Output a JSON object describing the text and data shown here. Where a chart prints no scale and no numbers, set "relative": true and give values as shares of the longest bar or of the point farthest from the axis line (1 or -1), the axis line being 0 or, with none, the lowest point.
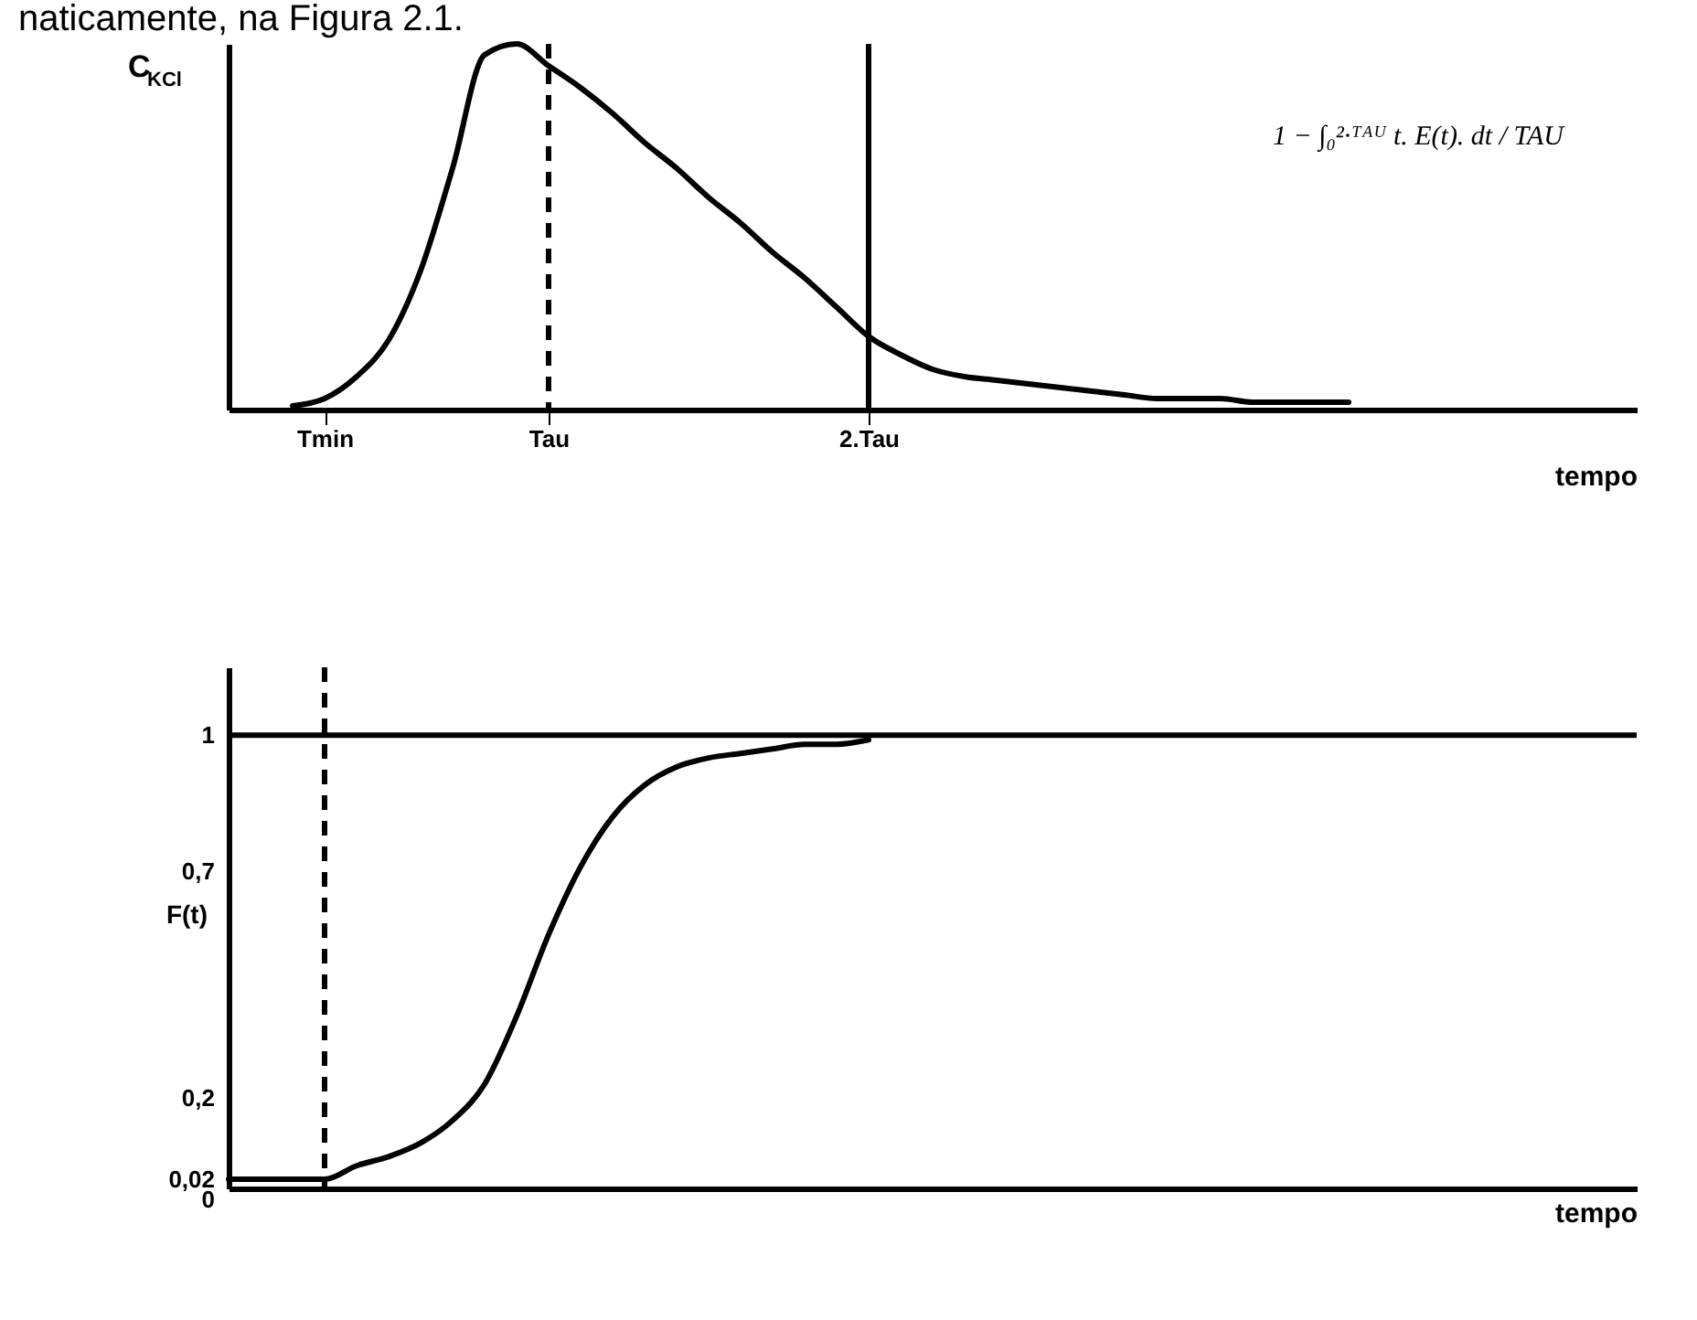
{
  "chart_data": [
    {
      "type": "line",
      "relative": true,
      "ylabel": "C$_{KCl}$",
      "xlabel": "tempo",
      "annotations": [
        "naticamente, na Figura 2.1.",
        "1 − ∫₀²·ᵀᴬᵁ t. E(t). dt / TAU"
      ],
      "categories": [
        null,
        null,
        null,
        "Tmin",
        null,
        null,
        null,
        null,
        null,
        null,
        "Tau",
        null,
        null,
        null,
        null,
        null,
        null,
        null,
        null,
        null,
        "2.Tau",
        null,
        null,
        null,
        null,
        null,
        null,
        null,
        null,
        null,
        null,
        null,
        null,
        null,
        null,
        null,
        null,
        null,
        null,
        null,
        null,
        null,
        null,
        null,
        null
      ],
      "series": [
        {
          "color": "#000000",
          "values": [
            null,
            null,
            0.01,
            0.03,
            0.09,
            0.19,
            0.38,
            0.66,
            0.97,
            1.0,
            0.94,
            0.88,
            0.81,
            0.73,
            0.66,
            0.58,
            0.51,
            0.43,
            0.36,
            0.28,
            0.2,
            0.15,
            0.11,
            0.09,
            0.08,
            0.07,
            0.06,
            0.05,
            0.04,
            0.03,
            0.03,
            0.03,
            0.02,
            0.02,
            0.02,
            0.02,
            null,
            null,
            null,
            null,
            null,
            null,
            null,
            null,
            null
          ]
        }
      ],
      "ref_lines": [
        {
          "axis": "x",
          "value": "Tau",
          "line_style": "dashed"
        },
        {
          "axis": "x",
          "value": "2.Tau",
          "line_style": "solid"
        }
      ]
    },
    {
      "type": "line",
      "ylabel": "F(t)",
      "xlabel": "tempo",
      "tick_labels": "y",
      "ylim": [
        0,
        1.15
      ],
      "categories": [
        null,
        null,
        null,
        "Tmin",
        null,
        null,
        null,
        null,
        null,
        null,
        "Tau",
        null,
        null,
        null,
        null,
        null,
        null,
        null,
        null,
        null,
        "2.Tau",
        null,
        null,
        null,
        null,
        null,
        null,
        null,
        null,
        null,
        null,
        null,
        null,
        null,
        null,
        null,
        null,
        null,
        null,
        null,
        null,
        null,
        null,
        null,
        null
      ],
      "yticks": [
        {
          "value": 0,
          "label": "0"
        },
        {
          "value": 0.02,
          "label": "0,02"
        },
        {
          "value": 0.2,
          "label": "0,2"
        },
        {
          "value": 0.7,
          "label": "0,7"
        },
        {
          "value": 1,
          "label": "1"
        }
      ],
      "series": [
        {
          "color": "#000000",
          "values": [
            0.02,
            0.02,
            0.02,
            0.02,
            0.05,
            0.07,
            0.1,
            0.15,
            0.23,
            0.38,
            0.56,
            0.71,
            0.82,
            0.89,
            0.93,
            0.95,
            0.96,
            0.97,
            0.98,
            0.98,
            0.99,
            null,
            null,
            null,
            null,
            null,
            null,
            null,
            null,
            null,
            null,
            null,
            null,
            null,
            null,
            null,
            null,
            null,
            null,
            null,
            null,
            null,
            null,
            null,
            null
          ]
        }
      ],
      "ref_lines": [
        {
          "axis": "x",
          "value": "Tmin",
          "line_style": "dashed"
        },
        {
          "axis": "y",
          "value": 1,
          "line_style": "solid"
        }
      ]
    }
  ]
}
